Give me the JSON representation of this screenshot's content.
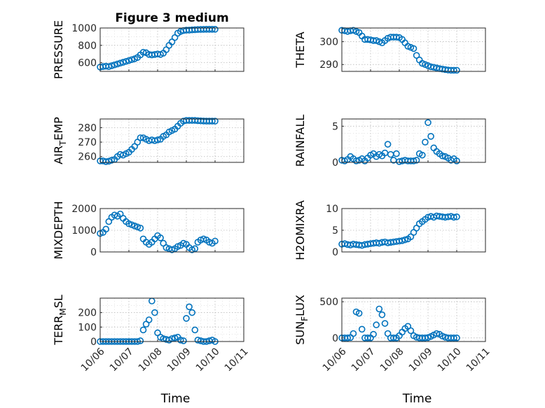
{
  "figure": {
    "title": "Figure 3 medium"
  },
  "chart_data": [
    {
      "type": "scatter",
      "id": "pressure",
      "title": "Figure 3 medium",
      "ylabel": "PRESSURE",
      "ylabel_sub": "",
      "ylabel_tail": "",
      "xlabel": "",
      "xlim": [
        0,
        5
      ],
      "ylim": [
        500,
        1000
      ],
      "yticks": [
        600,
        800,
        1000
      ],
      "yminor": [
        500,
        700,
        900
      ],
      "show_xticklabels": false,
      "x": [
        0.0,
        0.1,
        0.2,
        0.3,
        0.4,
        0.5,
        0.6,
        0.7,
        0.8,
        0.9,
        1.0,
        1.1,
        1.2,
        1.3,
        1.4,
        1.5,
        1.6,
        1.7,
        1.8,
        1.9,
        2.0,
        2.1,
        2.2,
        2.3,
        2.4,
        2.5,
        2.6,
        2.7,
        2.8,
        2.9,
        3.0,
        3.1,
        3.2,
        3.3,
        3.4,
        3.5,
        3.6,
        3.7,
        3.8,
        3.9,
        4.0
      ],
      "y": [
        550,
        555,
        560,
        555,
        565,
        575,
        585,
        595,
        605,
        615,
        625,
        635,
        645,
        660,
        690,
        720,
        715,
        695,
        690,
        695,
        700,
        695,
        710,
        750,
        800,
        840,
        890,
        940,
        960,
        970,
        975,
        975,
        978,
        980,
        982,
        983,
        984,
        985,
        985,
        985,
        985
      ]
    },
    {
      "type": "scatter",
      "id": "theta",
      "title": "",
      "ylabel": "THETA",
      "ylabel_sub": "",
      "ylabel_tail": "",
      "xlabel": "",
      "xlim": [
        0,
        5
      ],
      "ylim": [
        287,
        306
      ],
      "yticks": [
        290,
        300
      ],
      "yminor": [
        295,
        305
      ],
      "show_xticklabels": false,
      "x": [
        0.0,
        0.1,
        0.2,
        0.3,
        0.4,
        0.5,
        0.6,
        0.7,
        0.8,
        0.9,
        1.0,
        1.1,
        1.2,
        1.3,
        1.4,
        1.5,
        1.6,
        1.7,
        1.8,
        1.9,
        2.0,
        2.1,
        2.2,
        2.3,
        2.4,
        2.5,
        2.6,
        2.7,
        2.8,
        2.9,
        3.0,
        3.1,
        3.2,
        3.3,
        3.4,
        3.5,
        3.6,
        3.7,
        3.8,
        3.9,
        4.0
      ],
      "y": [
        305.0,
        304.8,
        304.5,
        304.8,
        305.0,
        304.5,
        304.0,
        302.5,
        301.0,
        301.0,
        300.8,
        300.5,
        300.5,
        300.0,
        299.5,
        300.5,
        301.5,
        302.0,
        302.0,
        302.0,
        301.8,
        301.0,
        299.5,
        298.0,
        297.5,
        297.0,
        294.0,
        292.0,
        290.5,
        290.0,
        289.5,
        289.0,
        288.8,
        288.5,
        288.2,
        288.0,
        287.8,
        287.6,
        287.5,
        287.5,
        287.5
      ]
    },
    {
      "type": "scatter",
      "id": "air-temp",
      "title": "",
      "ylabel": "AIR",
      "ylabel_sub": "T",
      "ylabel_tail": "EMP",
      "xlabel": "",
      "xlim": [
        0,
        5
      ],
      "ylim": [
        256,
        286
      ],
      "yticks": [
        260,
        270,
        280
      ],
      "yminor": [
        265,
        275,
        285
      ],
      "show_xticklabels": false,
      "x": [
        0.0,
        0.1,
        0.2,
        0.3,
        0.4,
        0.5,
        0.6,
        0.7,
        0.8,
        0.9,
        1.0,
        1.1,
        1.2,
        1.3,
        1.4,
        1.5,
        1.6,
        1.7,
        1.8,
        1.9,
        2.0,
        2.1,
        2.2,
        2.3,
        2.4,
        2.5,
        2.6,
        2.7,
        2.8,
        2.9,
        3.0,
        3.1,
        3.2,
        3.3,
        3.4,
        3.5,
        3.6,
        3.7,
        3.8,
        3.9,
        4.0
      ],
      "y": [
        257.0,
        257.0,
        256.5,
        256.8,
        257.5,
        258.0,
        260.0,
        261.5,
        261.0,
        262.0,
        263.0,
        265.0,
        267.0,
        270.0,
        273.0,
        273.0,
        272.0,
        271.0,
        271.5,
        271.0,
        271.5,
        272.0,
        274.0,
        275.0,
        277.0,
        278.0,
        279.0,
        281.0,
        283.0,
        284.5,
        285.0,
        285.0,
        285.0,
        285.0,
        284.8,
        284.7,
        284.6,
        284.5,
        284.5,
        284.5,
        284.5
      ]
    },
    {
      "type": "scatter",
      "id": "rainfall",
      "title": "",
      "ylabel": "RAINFALL",
      "ylabel_sub": "",
      "ylabel_tail": "",
      "xlabel": "",
      "xlim": [
        0,
        5
      ],
      "ylim": [
        0,
        6
      ],
      "yticks": [
        0,
        5
      ],
      "yminor": [
        1,
        2,
        3,
        4
      ],
      "show_xticklabels": false,
      "x": [
        0.0,
        0.1,
        0.2,
        0.3,
        0.4,
        0.5,
        0.6,
        0.7,
        0.8,
        0.9,
        1.0,
        1.1,
        1.2,
        1.3,
        1.4,
        1.5,
        1.6,
        1.7,
        1.8,
        1.9,
        2.0,
        2.1,
        2.2,
        2.3,
        2.4,
        2.5,
        2.6,
        2.7,
        2.8,
        2.9,
        3.0,
        3.1,
        3.2,
        3.3,
        3.4,
        3.5,
        3.6,
        3.7,
        3.8,
        3.9,
        4.0
      ],
      "y": [
        0.3,
        0.2,
        0.4,
        0.8,
        0.5,
        0.2,
        0.3,
        0.5,
        0.2,
        0.6,
        1.0,
        1.2,
        0.8,
        1.1,
        0.9,
        1.3,
        2.5,
        1.1,
        0.3,
        1.2,
        0.1,
        0.2,
        0.3,
        0.2,
        0.2,
        0.2,
        0.3,
        1.2,
        1.0,
        2.8,
        5.5,
        3.6,
        2.0,
        1.5,
        1.2,
        0.9,
        0.8,
        0.6,
        0.3,
        0.5,
        0.2
      ]
    },
    {
      "type": "scatter",
      "id": "mixdepth",
      "title": "",
      "ylabel": "MIXDEPTH",
      "ylabel_sub": "",
      "ylabel_tail": "",
      "xlabel": "",
      "xlim": [
        0,
        5
      ],
      "ylim": [
        0,
        2000
      ],
      "yticks": [
        0,
        1000,
        2000
      ],
      "yminor": [
        500,
        1500
      ],
      "show_xticklabels": false,
      "x": [
        0.0,
        0.1,
        0.2,
        0.3,
        0.4,
        0.5,
        0.6,
        0.7,
        0.8,
        0.9,
        1.0,
        1.1,
        1.2,
        1.3,
        1.4,
        1.5,
        1.6,
        1.7,
        1.8,
        1.9,
        2.0,
        2.1,
        2.2,
        2.3,
        2.4,
        2.5,
        2.6,
        2.7,
        2.8,
        2.9,
        3.0,
        3.1,
        3.2,
        3.3,
        3.4,
        3.5,
        3.6,
        3.7,
        3.8,
        3.9,
        4.0
      ],
      "y": [
        850,
        900,
        1050,
        1400,
        1600,
        1700,
        1650,
        1750,
        1550,
        1400,
        1300,
        1250,
        1200,
        1150,
        1100,
        600,
        450,
        350,
        450,
        600,
        750,
        650,
        400,
        200,
        150,
        100,
        150,
        250,
        300,
        400,
        350,
        200,
        100,
        150,
        450,
        550,
        600,
        550,
        450,
        400,
        500
      ]
    },
    {
      "type": "scatter",
      "id": "h2omixra",
      "title": "",
      "ylabel": "H2OMIXRA",
      "ylabel_sub": "",
      "ylabel_tail": "",
      "xlabel": "",
      "xlim": [
        0,
        5
      ],
      "ylim": [
        0,
        10
      ],
      "yticks": [
        0,
        5,
        10
      ],
      "yminor": [
        2.5,
        7.5
      ],
      "show_xticklabels": false,
      "x": [
        0.0,
        0.1,
        0.2,
        0.3,
        0.4,
        0.5,
        0.6,
        0.7,
        0.8,
        0.9,
        1.0,
        1.1,
        1.2,
        1.3,
        1.4,
        1.5,
        1.6,
        1.7,
        1.8,
        1.9,
        2.0,
        2.1,
        2.2,
        2.3,
        2.4,
        2.5,
        2.6,
        2.7,
        2.8,
        2.9,
        3.0,
        3.1,
        3.2,
        3.3,
        3.4,
        3.5,
        3.6,
        3.7,
        3.8,
        3.9,
        4.0
      ],
      "y": [
        1.8,
        1.9,
        1.7,
        1.6,
        1.8,
        1.7,
        1.6,
        1.5,
        1.7,
        1.8,
        1.9,
        2.0,
        2.1,
        2.0,
        2.2,
        2.3,
        2.1,
        2.2,
        2.3,
        2.4,
        2.5,
        2.6,
        2.8,
        3.0,
        3.5,
        4.5,
        5.5,
        6.5,
        7.0,
        7.5,
        8.0,
        8.2,
        8.0,
        8.3,
        8.2,
        8.1,
        8.0,
        8.1,
        8.2,
        8.0,
        8.1
      ]
    },
    {
      "type": "scatter",
      "id": "terr-msl",
      "title": "",
      "ylabel": "TERR",
      "ylabel_sub": "M",
      "ylabel_tail": "SL",
      "xlabel": "Time",
      "xlim": [
        0,
        5
      ],
      "ylim": [
        0,
        300
      ],
      "yticks": [
        0,
        100,
        200
      ],
      "yminor": [
        50,
        150,
        250
      ],
      "show_xticklabels": true,
      "xtick_labels": [
        "10/06",
        "10/07",
        "10/08",
        "10/09",
        "10/10",
        "10/11"
      ],
      "x": [
        0.0,
        0.1,
        0.2,
        0.3,
        0.4,
        0.5,
        0.6,
        0.7,
        0.8,
        0.9,
        1.0,
        1.1,
        1.2,
        1.3,
        1.4,
        1.5,
        1.6,
        1.7,
        1.8,
        1.9,
        2.0,
        2.1,
        2.2,
        2.3,
        2.4,
        2.5,
        2.6,
        2.7,
        2.8,
        2.9,
        3.0,
        3.1,
        3.2,
        3.3,
        3.4,
        3.5,
        3.6,
        3.7,
        3.8,
        3.9,
        4.0
      ],
      "y": [
        0,
        0,
        0,
        0,
        0,
        0,
        0,
        0,
        0,
        0,
        0,
        0,
        0,
        0,
        5,
        80,
        120,
        150,
        280,
        200,
        60,
        30,
        20,
        15,
        10,
        20,
        25,
        30,
        10,
        5,
        160,
        240,
        200,
        80,
        10,
        5,
        0,
        0,
        5,
        10,
        0
      ]
    },
    {
      "type": "scatter",
      "id": "sun-flux",
      "title": "",
      "ylabel": "SUN",
      "ylabel_sub": "F",
      "ylabel_tail": "LUX",
      "xlabel": "Time",
      "xlim": [
        0,
        5
      ],
      "ylim": [
        -50,
        550
      ],
      "yticks": [
        0,
        500
      ],
      "yminor": [
        100,
        200,
        300,
        400
      ],
      "show_xticklabels": true,
      "xtick_labels": [
        "10/06",
        "10/07",
        "10/08",
        "10/09",
        "10/10",
        "10/11"
      ],
      "x": [
        0.0,
        0.1,
        0.2,
        0.3,
        0.4,
        0.5,
        0.6,
        0.7,
        0.8,
        0.9,
        1.0,
        1.1,
        1.2,
        1.3,
        1.4,
        1.5,
        1.6,
        1.7,
        1.8,
        1.9,
        2.0,
        2.1,
        2.2,
        2.3,
        2.4,
        2.5,
        2.6,
        2.7,
        2.8,
        2.9,
        3.0,
        3.1,
        3.2,
        3.3,
        3.4,
        3.5,
        3.6,
        3.7,
        3.8,
        3.9,
        4.0
      ],
      "y": [
        0,
        0,
        0,
        5,
        60,
        360,
        340,
        120,
        0,
        0,
        0,
        50,
        180,
        400,
        320,
        200,
        60,
        0,
        0,
        0,
        30,
        80,
        130,
        160,
        100,
        30,
        10,
        0,
        0,
        0,
        5,
        20,
        40,
        60,
        50,
        25,
        10,
        0,
        0,
        0,
        0
      ]
    }
  ]
}
